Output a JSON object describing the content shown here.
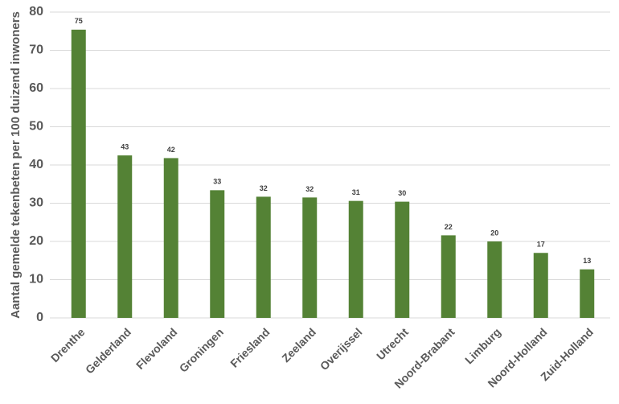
{
  "chart_data": {
    "type": "bar",
    "y_label": "Aantal gemelde tekenbeten per 100 duizend inwoners",
    "categories": [
      "Drenthe",
      "Gelderland",
      "Flevoland",
      "Groningen",
      "Friesland",
      "Zeeland",
      "Overijssel",
      "Utrecht",
      "Noord-Brabant",
      "Limburg",
      "Noord-Holland",
      "Zuid-Holland"
    ],
    "values": [
      75.4,
      42.5,
      41.8,
      33.4,
      31.7,
      31.5,
      30.6,
      30.4,
      21.6,
      20.0,
      17.0,
      12.7
    ],
    "value_labels": [
      "75",
      "43",
      "42",
      "33",
      "32",
      "32",
      "31",
      "30",
      "22",
      "20",
      "17",
      "13"
    ],
    "color": "#548235",
    "ylim": [
      0,
      80
    ],
    "yticks": [
      0,
      10,
      20,
      30,
      40,
      50,
      60,
      70,
      80
    ],
    "grid": true
  }
}
